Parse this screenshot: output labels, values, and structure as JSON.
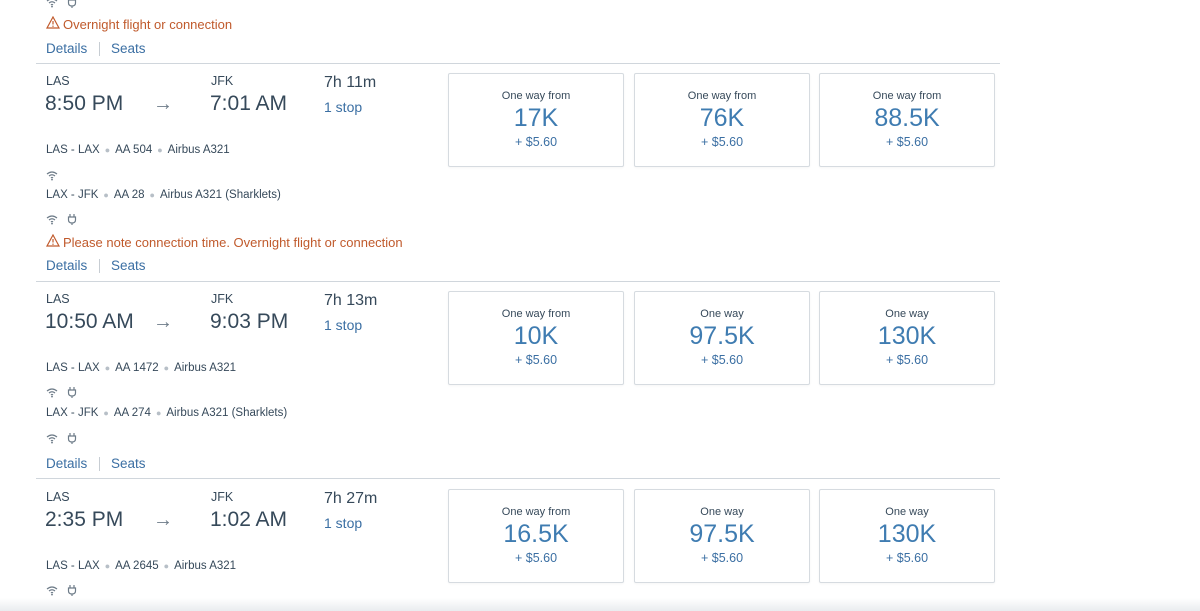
{
  "top": {
    "warning": "Overnight flight or connection",
    "details": "Details",
    "seats": "Seats"
  },
  "flights": [
    {
      "from": "LAS",
      "to": "JFK",
      "depart": "8:50 PM",
      "arrive": "7:01 AM",
      "duration": "7h 11m",
      "stops": "1 stop",
      "segments": [
        {
          "route": "LAS - LAX",
          "flight": "AA 504",
          "aircraft": "Airbus A321"
        },
        {
          "route": "LAX - JFK",
          "flight": "AA 28",
          "aircraft": "Airbus A321 (Sharklets)"
        }
      ],
      "warning": "Please note connection time. Overnight flight or connection",
      "details": "Details",
      "seats": "Seats",
      "fares": [
        {
          "label": "One way from",
          "amount": "17K",
          "tax": "+ $5.60"
        },
        {
          "label": "One way from",
          "amount": "76K",
          "tax": "+ $5.60"
        },
        {
          "label": "One way from",
          "amount": "88.5K",
          "tax": "+ $5.60"
        }
      ]
    },
    {
      "from": "LAS",
      "to": "JFK",
      "depart": "10:50 AM",
      "arrive": "9:03 PM",
      "duration": "7h 13m",
      "stops": "1 stop",
      "segments": [
        {
          "route": "LAS - LAX",
          "flight": "AA 1472",
          "aircraft": "Airbus A321"
        },
        {
          "route": "LAX - JFK",
          "flight": "AA 274",
          "aircraft": "Airbus A321 (Sharklets)"
        }
      ],
      "details": "Details",
      "seats": "Seats",
      "fares": [
        {
          "label": "One way from",
          "amount": "10K",
          "tax": "+ $5.60"
        },
        {
          "label": "One way",
          "amount": "97.5K",
          "tax": "+ $5.60"
        },
        {
          "label": "One way",
          "amount": "130K",
          "tax": "+ $5.60"
        }
      ]
    },
    {
      "from": "LAS",
      "to": "JFK",
      "depart": "2:35 PM",
      "arrive": "1:02 AM",
      "duration": "7h 27m",
      "stops": "1 stop",
      "segments": [
        {
          "route": "LAS - LAX",
          "flight": "AA 2645",
          "aircraft": "Airbus A321"
        }
      ],
      "fares": [
        {
          "label": "One way from",
          "amount": "16.5K",
          "tax": "+ $5.60"
        },
        {
          "label": "One way",
          "amount": "97.5K",
          "tax": "+ $5.60"
        },
        {
          "label": "One way",
          "amount": "130K",
          "tax": "+ $5.60"
        }
      ]
    }
  ],
  "icons": {
    "warning": "warning-triangle-icon",
    "wifi": "wifi-icon",
    "power": "power-outlet-icon",
    "arrow": "right-arrow-icon"
  },
  "colors": {
    "link": "#3b6fa3",
    "fare_amount": "#3f7cb1",
    "warning": "#c05a2c",
    "text": "#36495a"
  }
}
